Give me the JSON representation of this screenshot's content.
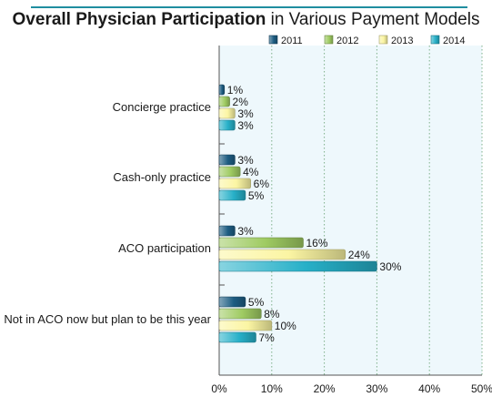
{
  "chart_data": {
    "type": "bar",
    "orientation": "horizontal",
    "title": "Overall Physician Participation in Various Payment Models",
    "title_bold": "Overall Physician Participation",
    "title_rest": " in Various Payment Models",
    "categories": [
      "Concierge practice",
      "Cash-only practice",
      "ACO participation",
      "Not in ACO now but plan to be this year"
    ],
    "series": [
      {
        "name": "2011",
        "values": [
          1,
          3,
          3,
          5
        ],
        "labels": [
          "1%",
          "3%",
          "3%",
          "5%"
        ],
        "color": "#1d5d82"
      },
      {
        "name": "2012",
        "values": [
          2,
          4,
          16,
          8
        ],
        "labels": [
          "2%",
          "4%",
          "16%",
          "8%"
        ],
        "color": "#9fcb62"
      },
      {
        "name": "2013",
        "values": [
          3,
          6,
          24,
          10
        ],
        "labels": [
          "3%",
          "6%",
          "24%",
          "10%"
        ],
        "color": "#fbf5a3"
      },
      {
        "name": "2014",
        "values": [
          3,
          5,
          30,
          7
        ],
        "labels": [
          "3%",
          "5%",
          "30%",
          "7%"
        ],
        "color": "#27b0c8"
      }
    ],
    "xlim": [
      0,
      50
    ],
    "xticks": [
      0,
      10,
      20,
      30,
      40,
      50
    ],
    "xtick_labels": [
      "0%",
      "10%",
      "20%",
      "30%",
      "40%",
      "50%"
    ],
    "grid": true,
    "legend_position": "top-right"
  },
  "colors": {
    "accent": "#1f8ea0",
    "plot_background": "#eef8fc",
    "gridline": "#7fb08a"
  }
}
